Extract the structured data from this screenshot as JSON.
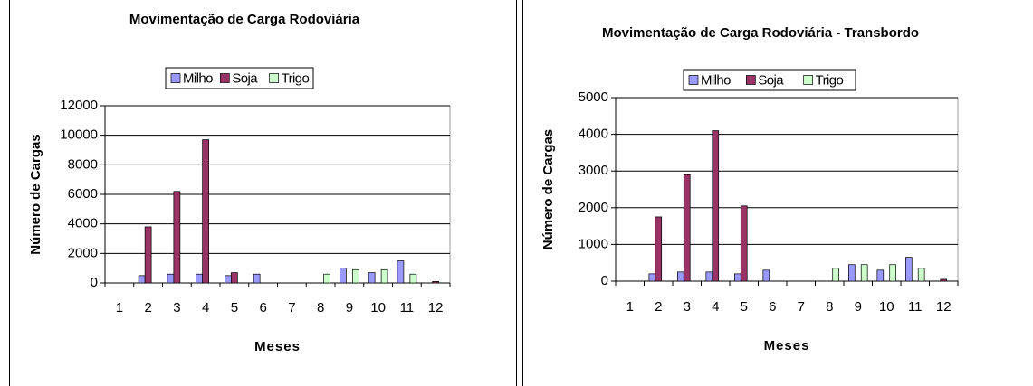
{
  "chart_data": [
    {
      "type": "bar",
      "title": "Movimentação de Carga  Rodoviária",
      "x_label": "Meses",
      "y_label": "Número de Cargas",
      "categories": [
        "1",
        "2",
        "3",
        "4",
        "5",
        "6",
        "7",
        "8",
        "9",
        "10",
        "11",
        "12"
      ],
      "series": [
        {
          "name": "Milho",
          "color": "#9999ff",
          "values": [
            0,
            500,
            600,
            600,
            500,
            600,
            0,
            0,
            1000,
            700,
            1500,
            0
          ]
        },
        {
          "name": "Soja",
          "color": "#993366",
          "values": [
            0,
            3800,
            6200,
            9700,
            700,
            0,
            0,
            0,
            0,
            0,
            0,
            100
          ]
        },
        {
          "name": "Trigo",
          "color": "#ccffcc",
          "values": [
            0,
            0,
            0,
            0,
            0,
            0,
            0,
            600,
            900,
            900,
            600,
            0
          ]
        }
      ],
      "ylim": [
        0,
        12000
      ],
      "yticks": [
        0,
        2000,
        4000,
        6000,
        8000,
        10000,
        12000
      ],
      "grid": true,
      "legend": "top"
    },
    {
      "type": "bar",
      "title": "Movimentação de Carga  Rodoviária - Transbordo",
      "x_label": "Meses",
      "y_label": "Número de Cargas",
      "categories": [
        "1",
        "2",
        "3",
        "4",
        "5",
        "6",
        "7",
        "8",
        "9",
        "10",
        "11",
        "12"
      ],
      "series": [
        {
          "name": "Milho",
          "color": "#9999ff",
          "values": [
            0,
            200,
            250,
            250,
            200,
            300,
            0,
            0,
            450,
            300,
            650,
            0
          ]
        },
        {
          "name": "Soja",
          "color": "#993366",
          "values": [
            0,
            1750,
            2900,
            4100,
            2050,
            0,
            0,
            0,
            0,
            0,
            0,
            50
          ]
        },
        {
          "name": "Trigo",
          "color": "#ccffcc",
          "values": [
            0,
            0,
            0,
            0,
            0,
            0,
            0,
            350,
            450,
            450,
            350,
            0
          ]
        }
      ],
      "ylim": [
        0,
        5000
      ],
      "yticks": [
        0,
        1000,
        2000,
        3000,
        4000,
        5000
      ],
      "grid": true,
      "legend": "top"
    }
  ]
}
